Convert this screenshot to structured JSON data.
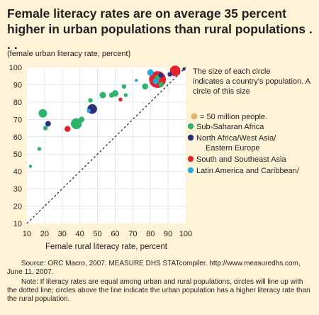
{
  "title": "Female literacy rates are on average 35 percent higher in urban populations than rural populations . . .",
  "source": "Source: ORC Macro, 2007. MEASURE DHS STATcompiler. http://www.measuredhs.com, June 11, 2007.",
  "note": "Note: If literacy rates are equal among urban and rural populations, circles will line up with the dotted line; circles above the line indicate the urban population has a higher literacy rate than the rural population.",
  "colors": {
    "plot_bg": "#ffffff",
    "grid": "#dbe9f6",
    "sub_saharan": "#2db36a",
    "north_africa": "#2a2f7e",
    "south_asia": "#e0242e",
    "latin_america": "#2aa7dd",
    "size_reference": "#e3b46f",
    "diagonal": "#231f20"
  },
  "chart_data": {
    "type": "scatter",
    "title": "Female literacy rates are on average 35 percent higher in urban populations than rural populations . . .",
    "xlabel": "Female rural literacy rate, percent",
    "ylabel": "(female urban literacy rate, percent)",
    "xlim": [
      10,
      100
    ],
    "ylim": [
      10,
      100
    ],
    "xticks": [
      10,
      20,
      30,
      40,
      50,
      60,
      70,
      80,
      90,
      100
    ],
    "yticks": [
      10,
      20,
      30,
      40,
      50,
      60,
      70,
      80,
      90,
      100
    ],
    "grid": true,
    "legend_position": "top-right",
    "reference_line": "y = x (dotted)",
    "size_note": "The size of each circle indicates a country's population. A circle of this size",
    "size_note_value": "= 50 million people.",
    "series": [
      {
        "name": "Sub-Saharan Africa",
        "color": "#2db36a",
        "points": [
          {
            "x": 12,
            "y": 43,
            "pop": 2
          },
          {
            "x": 17,
            "y": 53,
            "pop": 3
          },
          {
            "x": 19,
            "y": 73.5,
            "pop": 14
          },
          {
            "x": 20.5,
            "y": 65,
            "pop": 4
          },
          {
            "x": 38,
            "y": 67.5,
            "pop": 23
          },
          {
            "x": 41,
            "y": 70,
            "pop": 6
          },
          {
            "x": 46,
            "y": 81,
            "pop": 4
          },
          {
            "x": 53,
            "y": 84,
            "pop": 8
          },
          {
            "x": 58,
            "y": 84,
            "pop": 5
          },
          {
            "x": 60,
            "y": 85,
            "pop": 8
          },
          {
            "x": 65,
            "y": 89,
            "pop": 4
          },
          {
            "x": 66,
            "y": 84,
            "pop": 3
          },
          {
            "x": 77,
            "y": 89,
            "pop": 7
          },
          {
            "x": 84,
            "y": 94,
            "pop": 5
          },
          {
            "x": 86,
            "y": 90,
            "pop": 5
          }
        ]
      },
      {
        "name": "North Africa/West Asia/ Eastern Europe",
        "color": "#2a2f7e",
        "points": [
          {
            "x": 22,
            "y": 67.5,
            "pop": 6
          },
          {
            "x": 47,
            "y": 76,
            "pop": 18
          },
          {
            "x": 86,
            "y": 95.5,
            "pop": 5
          },
          {
            "x": 91,
            "y": 96,
            "pop": 4
          },
          {
            "x": 99,
            "y": 99,
            "pop": 2
          }
        ]
      },
      {
        "name": "South and Southeast Asia",
        "color": "#e0242e",
        "points": [
          {
            "x": 33,
            "y": 64.5,
            "pop": 7
          },
          {
            "x": 63,
            "y": 81.5,
            "pop": 3
          },
          {
            "x": 84,
            "y": 93,
            "pop": 55
          },
          {
            "x": 94,
            "y": 98,
            "pop": 22
          }
        ]
      },
      {
        "name": "Latin America and Caribbean",
        "color": "#2aa7dd",
        "points": [
          {
            "x": 45,
            "y": 75,
            "pop": 3
          },
          {
            "x": 72,
            "y": 92.5,
            "pop": 2
          },
          {
            "x": 80,
            "y": 97,
            "pop": 8
          },
          {
            "x": 83,
            "y": 92,
            "pop": 7
          }
        ]
      }
    ]
  }
}
